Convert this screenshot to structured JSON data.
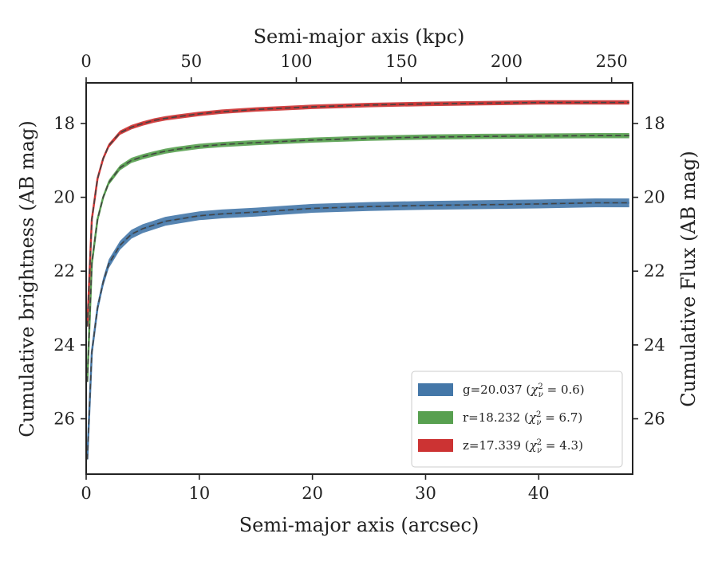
{
  "chart_data": {
    "type": "line",
    "xlabel": "Semi-major axis (arcsec)",
    "x2label": "Semi-major axis (kpc)",
    "ylabel": "Cumulative brightness (AB mag)",
    "y2label": "Cumulative Flux (AB mag)",
    "xlim": [
      0,
      48.3
    ],
    "x2lim": [
      0,
      260
    ],
    "ylim": [
      27.5,
      16.9
    ],
    "y_inverted": true,
    "xticks": [
      0,
      10,
      20,
      30,
      40
    ],
    "xtick_labels": [
      "0",
      "10",
      "20",
      "30",
      "40"
    ],
    "x2ticks": [
      0,
      50,
      100,
      150,
      200,
      250
    ],
    "x2tick_labels": [
      "0",
      "50",
      "100",
      "150",
      "200",
      "250"
    ],
    "yticks": [
      18,
      20,
      22,
      24,
      26
    ],
    "ytick_labels": [
      "18",
      "20",
      "22",
      "24",
      "26"
    ],
    "legend_position": "lower-right",
    "grid": false,
    "series": [
      {
        "name": "g=20.037 (χ²ᵥ = 0.6)",
        "legend_main": "g=20.037 (",
        "legend_chi": "χ",
        "legend_sup": "2",
        "legend_sub": "ν",
        "legend_value": " = 0.6)",
        "color": "#4477a8",
        "band_width": 0.12,
        "x": [
          0.1,
          0.5,
          1,
          1.5,
          2,
          3,
          4,
          5,
          6,
          7,
          8,
          10,
          12,
          15,
          20,
          25,
          30,
          35,
          40,
          45,
          48
        ],
        "y": [
          27.1,
          24.2,
          23.0,
          22.3,
          21.8,
          21.3,
          21.0,
          20.85,
          20.75,
          20.65,
          20.6,
          20.5,
          20.45,
          20.4,
          20.3,
          20.25,
          20.22,
          20.2,
          20.18,
          20.15,
          20.15
        ]
      },
      {
        "name": "r=18.232 (χ²ᵥ = 6.7)",
        "legend_main": "r=18.232 (",
        "legend_chi": "χ",
        "legend_sup": "2",
        "legend_sub": "ν",
        "legend_value": " = 6.7)",
        "color": "#58a050",
        "band_width": 0.07,
        "x": [
          0.1,
          0.5,
          1,
          1.5,
          2,
          3,
          4,
          5,
          6,
          7,
          8,
          10,
          12,
          15,
          20,
          25,
          30,
          35,
          40,
          45,
          48
        ],
        "y": [
          25.0,
          21.8,
          20.6,
          20.0,
          19.6,
          19.2,
          19.0,
          18.9,
          18.82,
          18.75,
          18.7,
          18.62,
          18.57,
          18.52,
          18.45,
          18.4,
          18.37,
          18.35,
          18.34,
          18.33,
          18.33
        ]
      },
      {
        "name": "z=17.339 (χ²ᵥ = 4.3)",
        "legend_main": "z=17.339 (",
        "legend_chi": "χ",
        "legend_sup": "2",
        "legend_sub": "ν",
        "legend_value": " = 4.3)",
        "color": "#cc3333",
        "band_width": 0.06,
        "x": [
          0.1,
          0.5,
          1,
          1.5,
          2,
          3,
          4,
          5,
          6,
          7,
          8,
          10,
          12,
          15,
          20,
          25,
          30,
          35,
          40,
          45,
          48
        ],
        "y": [
          23.5,
          20.6,
          19.5,
          18.95,
          18.6,
          18.25,
          18.1,
          18.0,
          17.92,
          17.86,
          17.82,
          17.74,
          17.68,
          17.62,
          17.55,
          17.5,
          17.47,
          17.45,
          17.43,
          17.43,
          17.43
        ]
      }
    ]
  }
}
